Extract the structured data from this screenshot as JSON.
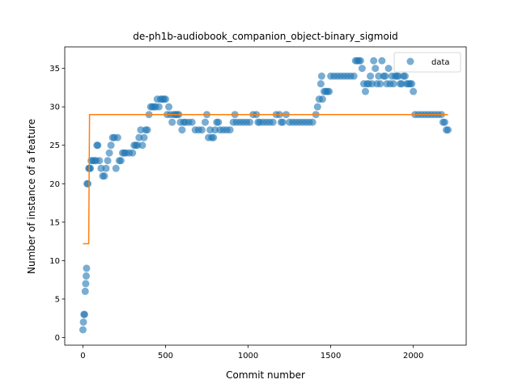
{
  "chart_data": {
    "type": "scatter",
    "title": "de-ph1b-audiobook_companion_object-binary_sigmoid",
    "xlabel": "Commit number",
    "ylabel": "Number of instance of a feature",
    "xlim": [
      -110,
      2320
    ],
    "ylim": [
      -1,
      37.8
    ],
    "xticks": [
      0,
      500,
      1000,
      1500,
      2000
    ],
    "yticks": [
      0,
      5,
      10,
      15,
      20,
      25,
      30,
      35
    ],
    "grid": false,
    "legend": {
      "position": "top-right",
      "entries": [
        "data"
      ]
    },
    "colors": {
      "data": "#1f77b4",
      "fit": "#ff7f0e"
    },
    "series": [
      {
        "name": "data",
        "kind": "scatter",
        "points": [
          [
            0,
            1
          ],
          [
            3,
            2
          ],
          [
            6,
            3
          ],
          [
            10,
            3
          ],
          [
            14,
            6
          ],
          [
            17,
            7
          ],
          [
            20,
            8
          ],
          [
            22,
            9
          ],
          [
            25,
            20
          ],
          [
            30,
            20
          ],
          [
            35,
            22
          ],
          [
            40,
            22
          ],
          [
            45,
            22
          ],
          [
            50,
            23
          ],
          [
            60,
            23
          ],
          [
            70,
            23
          ],
          [
            80,
            23
          ],
          [
            85,
            25
          ],
          [
            90,
            25
          ],
          [
            100,
            23
          ],
          [
            110,
            22
          ],
          [
            120,
            21
          ],
          [
            130,
            21
          ],
          [
            140,
            22
          ],
          [
            150,
            23
          ],
          [
            160,
            24
          ],
          [
            170,
            25
          ],
          [
            180,
            26
          ],
          [
            190,
            26
          ],
          [
            200,
            22
          ],
          [
            210,
            26
          ],
          [
            220,
            23
          ],
          [
            230,
            23
          ],
          [
            240,
            24
          ],
          [
            250,
            24
          ],
          [
            260,
            24
          ],
          [
            280,
            24
          ],
          [
            300,
            24
          ],
          [
            310,
            25
          ],
          [
            320,
            25
          ],
          [
            330,
            25
          ],
          [
            340,
            26
          ],
          [
            350,
            27
          ],
          [
            360,
            25
          ],
          [
            370,
            26
          ],
          [
            380,
            27
          ],
          [
            390,
            27
          ],
          [
            400,
            29
          ],
          [
            410,
            30
          ],
          [
            420,
            30
          ],
          [
            430,
            30
          ],
          [
            440,
            30
          ],
          [
            450,
            31
          ],
          [
            460,
            30
          ],
          [
            470,
            31
          ],
          [
            480,
            31
          ],
          [
            490,
            31
          ],
          [
            500,
            31
          ],
          [
            510,
            29
          ],
          [
            520,
            30
          ],
          [
            530,
            29
          ],
          [
            540,
            28
          ],
          [
            550,
            29
          ],
          [
            560,
            29
          ],
          [
            570,
            29
          ],
          [
            580,
            29
          ],
          [
            590,
            28
          ],
          [
            600,
            27
          ],
          [
            610,
            28
          ],
          [
            620,
            28
          ],
          [
            640,
            28
          ],
          [
            660,
            28
          ],
          [
            680,
            27
          ],
          [
            700,
            27
          ],
          [
            720,
            27
          ],
          [
            740,
            28
          ],
          [
            750,
            29
          ],
          [
            760,
            26
          ],
          [
            770,
            27
          ],
          [
            780,
            26
          ],
          [
            790,
            26
          ],
          [
            800,
            27
          ],
          [
            810,
            28
          ],
          [
            820,
            28
          ],
          [
            830,
            27
          ],
          [
            850,
            27
          ],
          [
            870,
            27
          ],
          [
            890,
            27
          ],
          [
            910,
            28
          ],
          [
            920,
            29
          ],
          [
            930,
            28
          ],
          [
            950,
            28
          ],
          [
            970,
            28
          ],
          [
            990,
            28
          ],
          [
            1010,
            28
          ],
          [
            1030,
            29
          ],
          [
            1050,
            29
          ],
          [
            1060,
            28
          ],
          [
            1070,
            28
          ],
          [
            1090,
            28
          ],
          [
            1110,
            28
          ],
          [
            1130,
            28
          ],
          [
            1150,
            28
          ],
          [
            1170,
            29
          ],
          [
            1190,
            29
          ],
          [
            1200,
            28
          ],
          [
            1210,
            28
          ],
          [
            1230,
            29
          ],
          [
            1250,
            28
          ],
          [
            1270,
            28
          ],
          [
            1290,
            28
          ],
          [
            1310,
            28
          ],
          [
            1330,
            28
          ],
          [
            1350,
            28
          ],
          [
            1370,
            28
          ],
          [
            1390,
            28
          ],
          [
            1410,
            29
          ],
          [
            1420,
            30
          ],
          [
            1430,
            31
          ],
          [
            1440,
            33
          ],
          [
            1445,
            34
          ],
          [
            1450,
            31
          ],
          [
            1460,
            32
          ],
          [
            1470,
            32
          ],
          [
            1480,
            32
          ],
          [
            1490,
            32
          ],
          [
            1500,
            34
          ],
          [
            1520,
            34
          ],
          [
            1540,
            34
          ],
          [
            1560,
            34
          ],
          [
            1580,
            34
          ],
          [
            1600,
            34
          ],
          [
            1620,
            34
          ],
          [
            1640,
            34
          ],
          [
            1650,
            36
          ],
          [
            1660,
            36
          ],
          [
            1670,
            36
          ],
          [
            1680,
            36
          ],
          [
            1690,
            35
          ],
          [
            1700,
            33
          ],
          [
            1710,
            32
          ],
          [
            1720,
            33
          ],
          [
            1730,
            33
          ],
          [
            1740,
            34
          ],
          [
            1750,
            33
          ],
          [
            1760,
            36
          ],
          [
            1770,
            35
          ],
          [
            1780,
            33
          ],
          [
            1790,
            34
          ],
          [
            1800,
            33
          ],
          [
            1810,
            36
          ],
          [
            1820,
            34
          ],
          [
            1830,
            34
          ],
          [
            1840,
            33
          ],
          [
            1850,
            35
          ],
          [
            1860,
            33
          ],
          [
            1870,
            34
          ],
          [
            1880,
            33
          ],
          [
            1890,
            34
          ],
          [
            1900,
            34
          ],
          [
            1910,
            34
          ],
          [
            1920,
            33
          ],
          [
            1930,
            33
          ],
          [
            1940,
            34
          ],
          [
            1950,
            34
          ],
          [
            1960,
            33
          ],
          [
            1970,
            33
          ],
          [
            1980,
            33
          ],
          [
            1990,
            33
          ],
          [
            2000,
            32
          ],
          [
            2010,
            29
          ],
          [
            2030,
            29
          ],
          [
            2050,
            29
          ],
          [
            2070,
            29
          ],
          [
            2090,
            29
          ],
          [
            2110,
            29
          ],
          [
            2130,
            29
          ],
          [
            2150,
            29
          ],
          [
            2170,
            29
          ],
          [
            2180,
            28
          ],
          [
            2190,
            28
          ],
          [
            2200,
            27
          ],
          [
            2210,
            27
          ]
        ]
      },
      {
        "name": "",
        "kind": "line",
        "points": [
          [
            0,
            12.2
          ],
          [
            35,
            12.2
          ],
          [
            40,
            29
          ],
          [
            2210,
            29
          ]
        ]
      }
    ]
  }
}
